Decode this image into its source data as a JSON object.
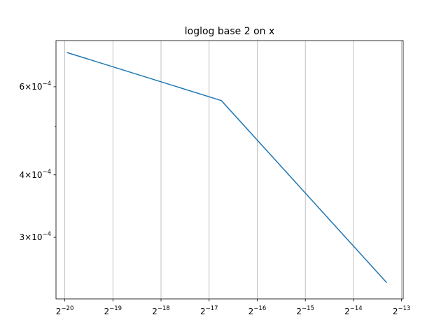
{
  "chart_data": {
    "type": "line",
    "title": "loglog base 2 on x",
    "xlabel": "",
    "ylabel": "",
    "xscale": "log2",
    "yscale": "log10",
    "xlim": [
      8.4e-07,
      0.000125
    ],
    "ylim": [
      0.000226,
      0.000742
    ],
    "grid": "x-major",
    "x_ticks": [
      {
        "value": 9.5367431640625e-07,
        "base": "2",
        "exp": "−20"
      },
      {
        "value": 1.9073486328125e-06,
        "base": "2",
        "exp": "−19"
      },
      {
        "value": 3.814697265625e-06,
        "base": "2",
        "exp": "−18"
      },
      {
        "value": 7.62939453125e-06,
        "base": "2",
        "exp": "−17"
      },
      {
        "value": 1.52587890625e-05,
        "base": "2",
        "exp": "−16"
      },
      {
        "value": 3.0517578125e-05,
        "base": "2",
        "exp": "−15"
      },
      {
        "value": 6.103515625e-05,
        "base": "2",
        "exp": "−14"
      },
      {
        "value": 0.0001220703125,
        "base": "2",
        "exp": "−13"
      }
    ],
    "y_ticks": [
      {
        "value": 0.0006,
        "mant": "6",
        "base": "10",
        "exp": "−4"
      },
      {
        "value": 0.0004,
        "mant": "4",
        "base": "10",
        "exp": "−4"
      },
      {
        "value": 0.0003,
        "mant": "3",
        "base": "10",
        "exp": "−4"
      }
    ],
    "y_minor_ticks": [
      0.0005
    ],
    "series": [
      {
        "color": "#1f77b4",
        "x": [
          9.9e-07,
          9.1e-06,
          9.8e-05
        ],
        "y": [
          0.000702,
          0.000563,
          0.000244
        ]
      }
    ]
  }
}
